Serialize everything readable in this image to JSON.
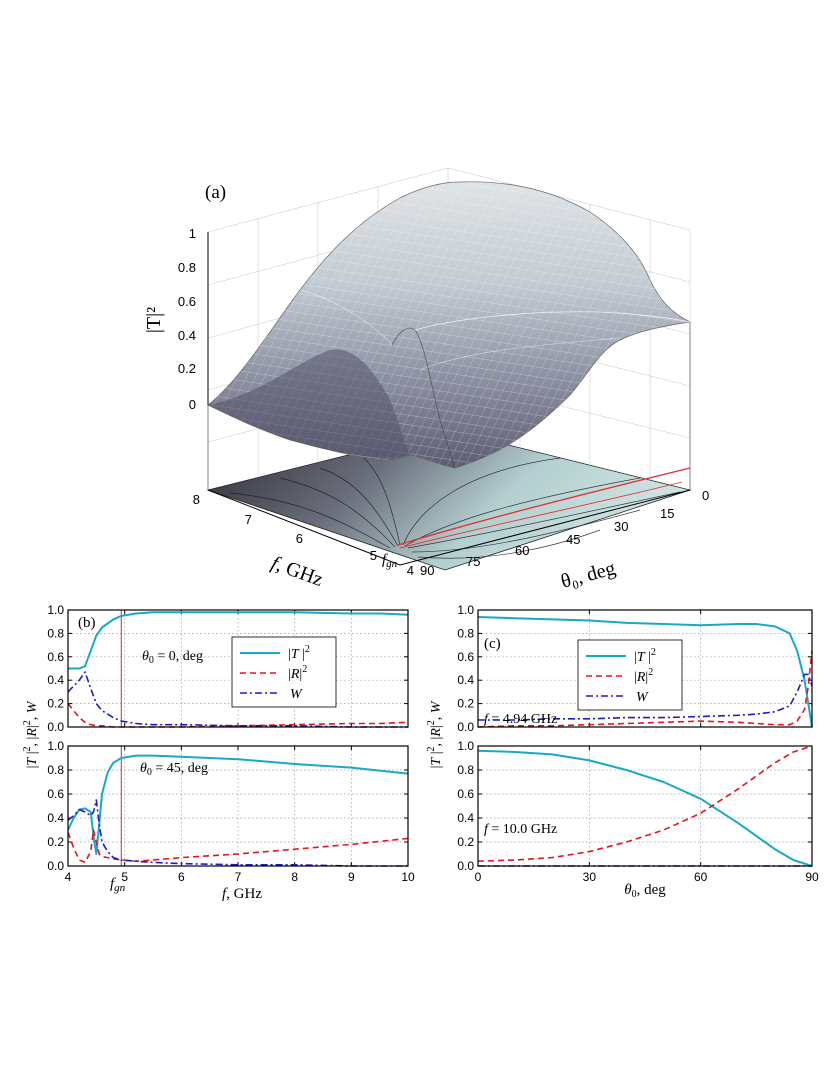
{
  "panel_a": {
    "label": "(a)",
    "z_axis": {
      "label": "|T|²",
      "ticks": [
        "0",
        "0.2",
        "0.4",
        "0.6",
        "0.8",
        "1"
      ]
    },
    "f_axis": {
      "label": "f, GHz",
      "ticks": [
        "8",
        "7",
        "6",
        "5",
        "4"
      ],
      "marker": "fgn"
    },
    "theta_axis": {
      "label": "θ₀, deg",
      "ticks": [
        "0",
        "15",
        "30",
        "45",
        "60",
        "75",
        "90"
      ]
    }
  },
  "panel_b": {
    "label": "(b)",
    "ylabel": "|T|², |R|², W",
    "xlabel": "f, GHz",
    "fgn_label": "fgn",
    "top_annotation": "θ0 = 0, deg",
    "bottom_annotation": "θ0 = 45, deg",
    "legend": [
      "|T|²",
      "|R|²",
      "W"
    ]
  },
  "panel_c": {
    "label": "(c)",
    "ylabel": "|T|², |R|², W",
    "xlabel": "θ0, deg",
    "top_annotation": "f = 4.94 GHz",
    "bottom_annotation": "f = 10.0 GHz",
    "legend": [
      "|T|²",
      "|R|²",
      "W"
    ]
  },
  "colors": {
    "T": "#1aa7c9",
    "R": "#e8141b",
    "W": "#1c1cc8",
    "fgn_line": "#b03a3a"
  },
  "chart_data": [
    {
      "type": "area",
      "panel": "a",
      "x_name": "theta0 (deg)",
      "y_name": "f (GHz)",
      "z_name": "|T|^2",
      "xlim": [
        0,
        90
      ],
      "ylim": [
        4,
        8
      ],
      "zlim": [
        0,
        1
      ],
      "x_ticks": [
        0,
        15,
        30,
        45,
        60,
        75,
        90
      ],
      "y_ticks": [
        4,
        5,
        6,
        7,
        8
      ],
      "z_ticks": [
        0,
        0.2,
        0.4,
        0.6,
        0.8,
        1
      ],
      "fgn": 4.94
    },
    {
      "type": "line",
      "panel": "b-top",
      "xlabel": "f, GHz",
      "xlim": [
        4,
        10
      ],
      "ylim": [
        0,
        1.0
      ],
      "x_ticks": [
        4,
        5,
        6,
        7,
        8,
        9,
        10
      ],
      "y_ticks": [
        0,
        0.2,
        0.4,
        0.6,
        0.8,
        1.0
      ],
      "fgn": 4.94,
      "x": [
        4.0,
        4.2,
        4.3,
        4.4,
        4.5,
        4.6,
        4.8,
        4.94,
        5.2,
        5.5,
        6,
        7,
        8,
        9,
        9.5,
        10
      ],
      "series": [
        {
          "name": "|T|²",
          "values": [
            0.5,
            0.5,
            0.52,
            0.65,
            0.78,
            0.85,
            0.92,
            0.95,
            0.97,
            0.98,
            0.98,
            0.98,
            0.98,
            0.97,
            0.97,
            0.96
          ]
        },
        {
          "name": "|R|²",
          "values": [
            0.2,
            0.08,
            0.04,
            0.02,
            0.01,
            0.01,
            0.0,
            0.0,
            0.0,
            0.0,
            0.0,
            0.01,
            0.02,
            0.03,
            0.03,
            0.04
          ]
        },
        {
          "name": "W",
          "values": [
            0.3,
            0.4,
            0.47,
            0.33,
            0.2,
            0.14,
            0.08,
            0.05,
            0.03,
            0.02,
            0.02,
            0.01,
            0.01,
            0.0,
            0.0,
            0.0
          ]
        }
      ]
    },
    {
      "type": "line",
      "panel": "b-bottom",
      "xlabel": "f, GHz",
      "xlim": [
        4,
        10
      ],
      "ylim": [
        0,
        1.0
      ],
      "x_ticks": [
        4,
        5,
        6,
        7,
        8,
        9,
        10
      ],
      "y_ticks": [
        0,
        0.2,
        0.4,
        0.6,
        0.8,
        1.0
      ],
      "fgn": 4.94,
      "x": [
        4.0,
        4.1,
        4.2,
        4.3,
        4.4,
        4.45,
        4.5,
        4.55,
        4.6,
        4.7,
        4.8,
        4.94,
        5.2,
        5.5,
        6,
        7,
        8,
        9,
        10
      ],
      "series": [
        {
          "name": "|T|²",
          "values": [
            0.3,
            0.4,
            0.47,
            0.48,
            0.45,
            0.25,
            0.1,
            0.35,
            0.6,
            0.78,
            0.86,
            0.9,
            0.92,
            0.92,
            0.91,
            0.89,
            0.85,
            0.82,
            0.77
          ]
        },
        {
          "name": "|R|²",
          "values": [
            0.28,
            0.15,
            0.05,
            0.03,
            0.12,
            0.3,
            0.2,
            0.1,
            0.08,
            0.07,
            0.06,
            0.05,
            0.04,
            0.05,
            0.07,
            0.1,
            0.14,
            0.18,
            0.23
          ]
        },
        {
          "name": "W",
          "values": [
            0.38,
            0.42,
            0.47,
            0.45,
            0.42,
            0.45,
            0.55,
            0.35,
            0.2,
            0.12,
            0.07,
            0.05,
            0.04,
            0.03,
            0.02,
            0.01,
            0.01,
            0.0,
            0.0
          ]
        }
      ]
    },
    {
      "type": "line",
      "panel": "c-top",
      "xlabel": "θ0, deg",
      "xlim": [
        0,
        90
      ],
      "ylim": [
        0,
        1.0
      ],
      "x_ticks": [
        0,
        30,
        60,
        90
      ],
      "y_ticks": [
        0,
        0.2,
        0.4,
        0.6,
        0.8,
        1.0
      ],
      "x": [
        0,
        10,
        20,
        30,
        40,
        50,
        60,
        70,
        75,
        80,
        84,
        86,
        88,
        89,
        90
      ],
      "series": [
        {
          "name": "|T|²",
          "values": [
            0.94,
            0.93,
            0.92,
            0.91,
            0.89,
            0.88,
            0.87,
            0.88,
            0.88,
            0.86,
            0.8,
            0.65,
            0.4,
            0.2,
            0.0
          ]
        },
        {
          "name": "|R|²",
          "values": [
            0.0,
            0.01,
            0.01,
            0.02,
            0.03,
            0.04,
            0.05,
            0.04,
            0.03,
            0.02,
            0.02,
            0.05,
            0.15,
            0.35,
            0.65
          ]
        },
        {
          "name": "W",
          "values": [
            0.06,
            0.06,
            0.07,
            0.07,
            0.08,
            0.08,
            0.09,
            0.1,
            0.11,
            0.13,
            0.18,
            0.3,
            0.45,
            0.45,
            0.35
          ]
        }
      ]
    },
    {
      "type": "line",
      "panel": "c-bottom",
      "xlabel": "θ0, deg",
      "xlim": [
        0,
        90
      ],
      "ylim": [
        0,
        1.0
      ],
      "x_ticks": [
        0,
        30,
        60,
        90
      ],
      "y_ticks": [
        0,
        0.2,
        0.4,
        0.6,
        0.8,
        1.0
      ],
      "x": [
        0,
        10,
        20,
        30,
        40,
        50,
        60,
        70,
        80,
        85,
        90
      ],
      "series": [
        {
          "name": "|T|²",
          "values": [
            0.96,
            0.95,
            0.93,
            0.88,
            0.8,
            0.7,
            0.56,
            0.36,
            0.14,
            0.05,
            0.0
          ]
        },
        {
          "name": "|R|²",
          "values": [
            0.04,
            0.05,
            0.07,
            0.12,
            0.2,
            0.3,
            0.44,
            0.64,
            0.86,
            0.95,
            1.0
          ]
        },
        {
          "name": "W",
          "values": [
            0.0,
            0.0,
            0.0,
            0.0,
            0.0,
            0.0,
            0.0,
            0.0,
            0.0,
            0.0,
            0.0
          ]
        }
      ]
    }
  ]
}
